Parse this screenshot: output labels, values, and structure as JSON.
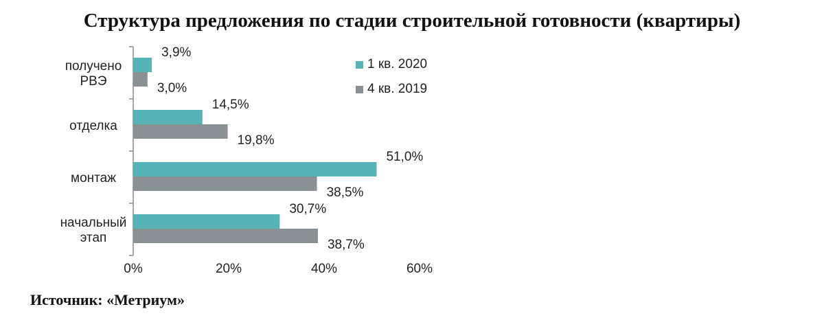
{
  "title": "Структура предложения по стадии строительной готовности (квартиры)",
  "source": "Источник: «Метриум»",
  "colors": {
    "series_2020": "#56b4b8",
    "series_2019": "#8a9195",
    "axis": "#8c8c8c"
  },
  "chart_data": {
    "type": "bar",
    "orientation": "horizontal",
    "categories": [
      [
        "получено",
        "РВЭ"
      ],
      [
        "отделка"
      ],
      [
        "монтаж"
      ],
      [
        "начальный",
        "этап"
      ]
    ],
    "series": [
      {
        "name": "1 кв. 2020",
        "values": [
          3.9,
          14.5,
          51.0,
          30.7
        ],
        "labels": [
          "3,9%",
          "14,5%",
          "51,0%",
          "30,7%"
        ]
      },
      {
        "name": "4 кв. 2019",
        "values": [
          3.0,
          19.8,
          38.5,
          38.7
        ],
        "labels": [
          "3,0%",
          "19,8%",
          "38,5%",
          "38,7%"
        ]
      }
    ],
    "xlim": [
      0,
      60
    ],
    "xticks": [
      0,
      20,
      40,
      60
    ],
    "xtick_labels": [
      "0%",
      "20%",
      "40%",
      "60%"
    ],
    "grid": false,
    "legend_position": "top-right"
  }
}
